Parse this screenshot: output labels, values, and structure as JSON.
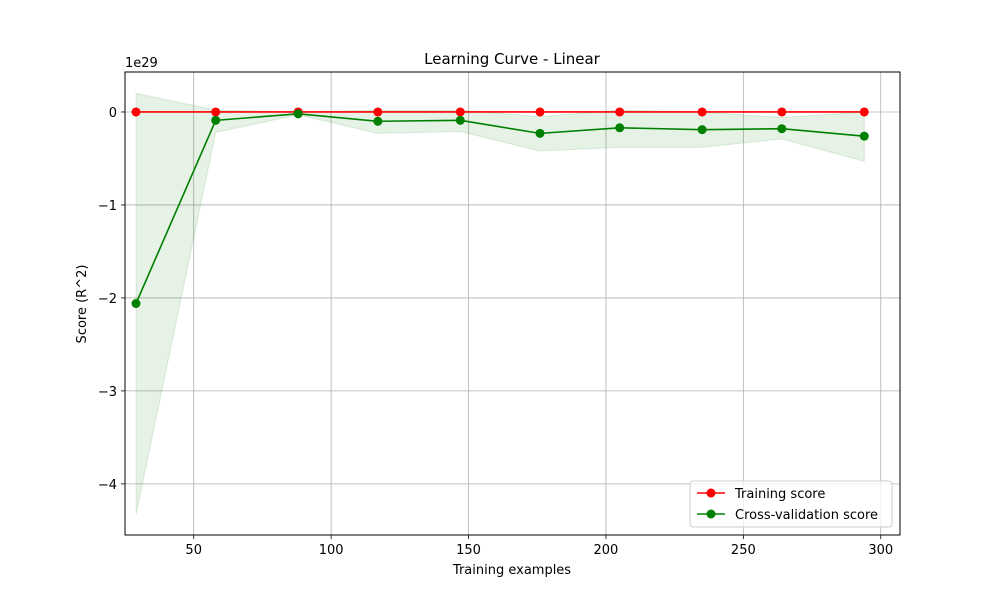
{
  "chart_data": {
    "type": "line",
    "title": "Learning Curve - Linear",
    "xlabel": "Training examples",
    "ylabel": "Score (R^2)",
    "y_offset_text": "1e29",
    "xlim": [
      25,
      307
    ],
    "ylim": [
      -4.55,
      0.43
    ],
    "x_ticks": [
      50,
      100,
      150,
      200,
      250,
      300
    ],
    "x_tick_labels": [
      "50",
      "100",
      "150",
      "200",
      "250",
      "300"
    ],
    "y_ticks": [
      0,
      -1,
      -2,
      -3,
      -4
    ],
    "y_tick_labels": [
      "0",
      "−1",
      "−2",
      "−3",
      "−4"
    ],
    "grid": true,
    "legend_position": "lower-right",
    "x": [
      29,
      58,
      88,
      117,
      147,
      176,
      205,
      235,
      264,
      294
    ],
    "series": [
      {
        "name": "Training score",
        "color": "#ff0000",
        "values": [
          0,
          0,
          0,
          0,
          0,
          0,
          0,
          0,
          0,
          0
        ]
      },
      {
        "name": "Cross-validation score",
        "color": "#008000",
        "band_color": "#008000",
        "values": [
          -2.06,
          -0.09,
          -0.02,
          -0.1,
          -0.09,
          -0.23,
          -0.17,
          -0.19,
          -0.18,
          -0.26
        ],
        "band_upper": [
          0.2,
          0.02,
          0.0,
          0.02,
          0.02,
          -0.05,
          0.02,
          0.0,
          -0.06,
          0.0
        ],
        "band_lower": [
          -4.33,
          -0.22,
          -0.03,
          -0.23,
          -0.21,
          -0.42,
          -0.38,
          -0.38,
          -0.29,
          -0.53
        ]
      }
    ]
  }
}
